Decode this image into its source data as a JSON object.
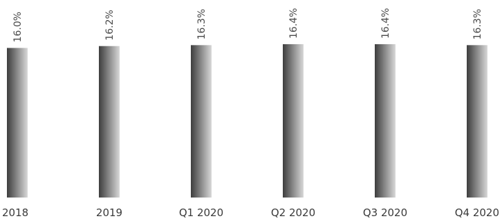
{
  "chart_data": {
    "type": "bar",
    "title": "",
    "xlabel": "",
    "ylabel": "",
    "categories": [
      "2018",
      "2019",
      "Q1 2020",
      "Q2 2020",
      "Q3 2020",
      "Q4 2020"
    ],
    "values": [
      16.0,
      16.2,
      16.3,
      16.4,
      16.4,
      16.3
    ],
    "value_labels": [
      "16.0%",
      "16.2%",
      "16.3%",
      "16.4%",
      "16.4%",
      "16.3%"
    ],
    "ylim": [
      0,
      16.4
    ],
    "grid": false,
    "legend": "none",
    "bar_gradient": [
      "#3d3d3d",
      "#d8d8d8"
    ]
  }
}
